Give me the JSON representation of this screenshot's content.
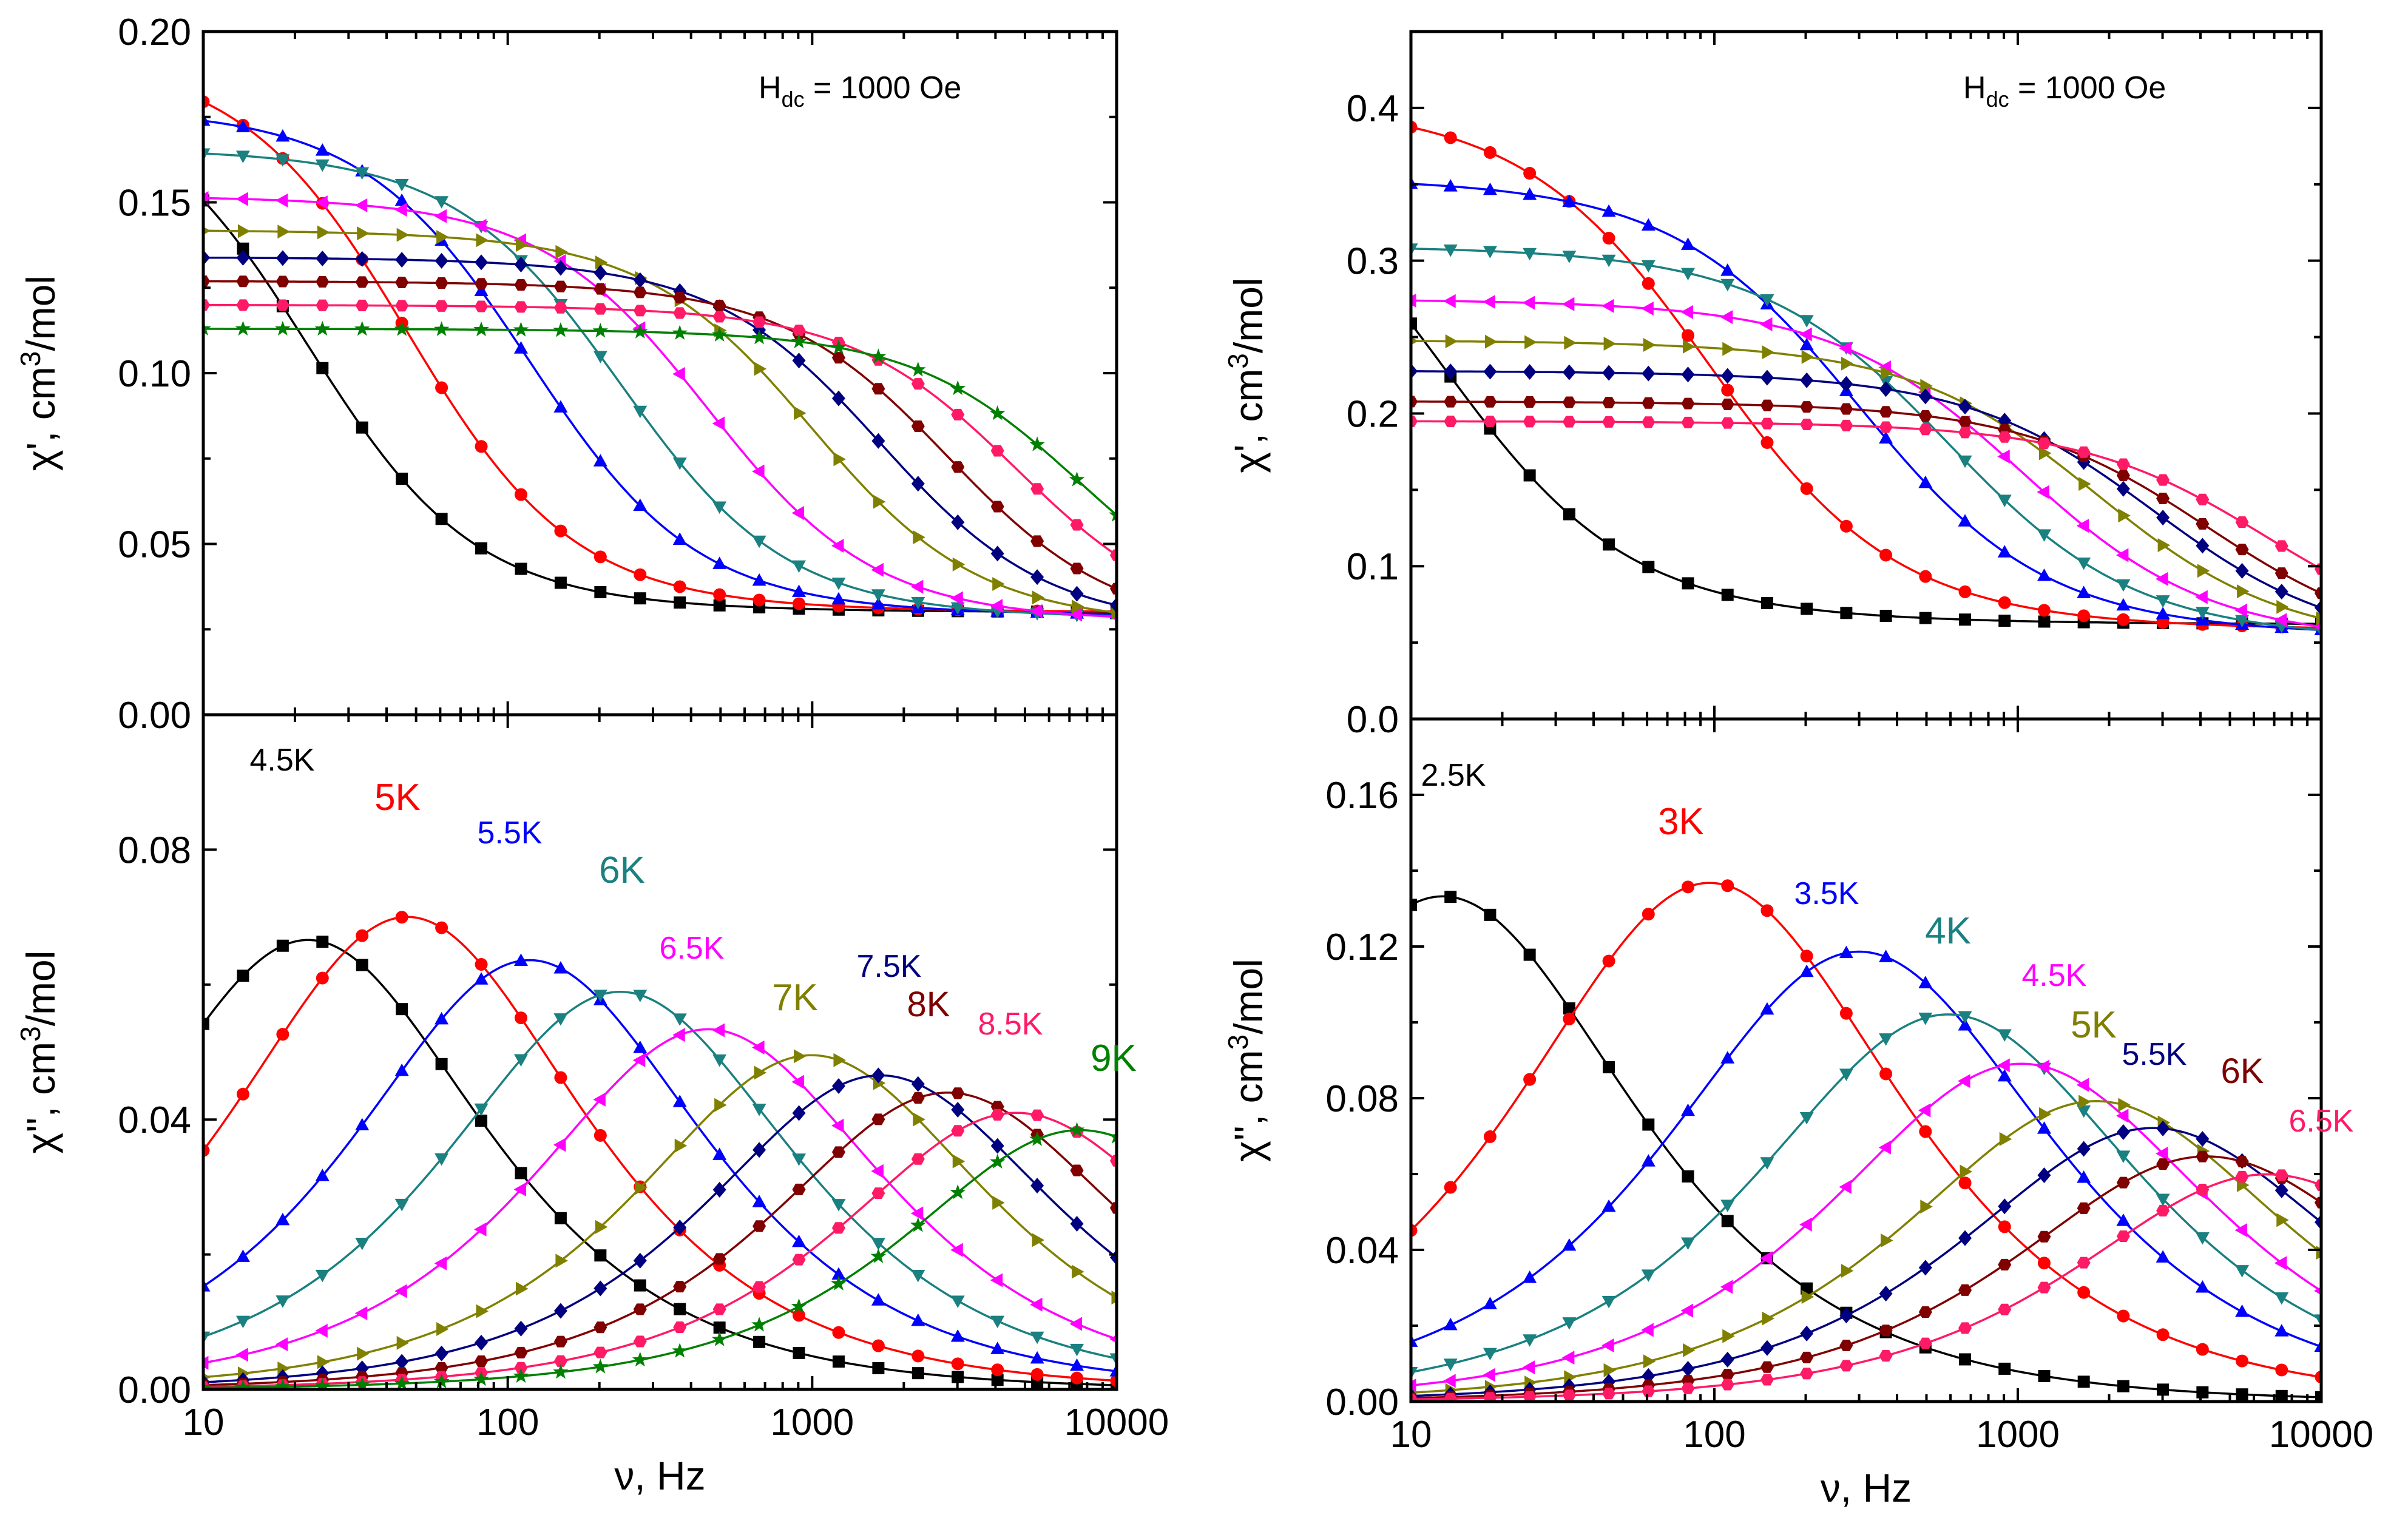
{
  "chart_data": [
    {
      "type": "scatter",
      "panel": "left-top",
      "title": "",
      "annotation": "Hdc = 1000 Oe",
      "xlabel": "ν, Hz",
      "ylabel": "χ', cm3/mol",
      "xscale": "log",
      "xlim": [
        10,
        10000
      ],
      "ylim": [
        0,
        0.2
      ],
      "yticks": [
        "0.00",
        "0.05",
        "0.10",
        "0.15",
        "0.20"
      ],
      "xticks": [
        "10",
        "100",
        "1000",
        "10000"
      ],
      "series": [
        {
          "name": "4.5K",
          "color": "#000000",
          "marker": "square",
          "chi_s": 0.03,
          "chi_t": 0.186,
          "tau": 0.0072,
          "alpha": 0.1
        },
        {
          "name": "5K",
          "color": "#ff0000",
          "marker": "circle",
          "chi_s": 0.03,
          "chi_t": 0.194,
          "tau": 0.0034,
          "alpha": 0.1
        },
        {
          "name": "5.5K",
          "color": "#0000ff",
          "marker": "triangle-up",
          "chi_s": 0.029,
          "chi_t": 0.178,
          "tau": 0.00135,
          "alpha": 0.1
        },
        {
          "name": "6K",
          "color": "#1a8080",
          "marker": "triangle-down",
          "chi_s": 0.028,
          "chi_t": 0.166,
          "tau": 0.00068,
          "alpha": 0.1
        },
        {
          "name": "6.5K",
          "color": "#ff00ff",
          "marker": "triangle-left",
          "chi_s": 0.027,
          "chi_t": 0.152,
          "tau": 0.00035,
          "alpha": 0.1
        },
        {
          "name": "7K",
          "color": "#808000",
          "marker": "triangle-right",
          "chi_s": 0.026,
          "chi_t": 0.142,
          "tau": 0.00016,
          "alpha": 0.1
        },
        {
          "name": "7.5K",
          "color": "#000080",
          "marker": "diamond",
          "chi_s": 0.025,
          "chi_t": 0.134,
          "tau": 9.5e-05,
          "alpha": 0.1
        },
        {
          "name": "8K",
          "color": "#800000",
          "marker": "hexagon",
          "chi_s": 0.024,
          "chi_t": 0.127,
          "tau": 5.7e-05,
          "alpha": 0.1
        },
        {
          "name": "8.5K",
          "color": "#ff1a66",
          "marker": "hexagon",
          "chi_s": 0.024,
          "chi_t": 0.12,
          "tau": 3.4e-05,
          "alpha": 0.1
        },
        {
          "name": "9K",
          "color": "#008000",
          "marker": "star",
          "chi_s": 0.023,
          "chi_t": 0.113,
          "tau": 2.1e-05,
          "alpha": 0.1
        }
      ]
    },
    {
      "type": "scatter",
      "panel": "left-bottom",
      "title": "",
      "xlabel": "ν, Hz",
      "ylabel": "χ'', cm3/mol",
      "xscale": "log",
      "xlim": [
        10,
        10000
      ],
      "ylim": [
        0,
        0.1
      ],
      "yticks": [
        "0.00",
        "0.04",
        "0.08"
      ],
      "xticks": [
        "10",
        "100",
        "1000",
        "10000"
      ],
      "series_ref": "left-top",
      "labels": [
        "4.5K",
        "5K",
        "5.5K",
        "6K",
        "6.5K",
        "7K",
        "7.5K",
        "8K",
        "8.5K",
        "9K"
      ]
    },
    {
      "type": "scatter",
      "panel": "right-top",
      "title": "",
      "annotation": "Hdc = 1000 Oe",
      "xlabel": "ν, Hz",
      "ylabel": "χ', cm3/mol",
      "xscale": "log",
      "xlim": [
        10,
        10000
      ],
      "ylim": [
        0,
        0.45
      ],
      "yticks": [
        "0.0",
        "0.1",
        "0.2",
        "0.3",
        "0.4"
      ],
      "xticks": [
        "10",
        "100",
        "1000",
        "10000"
      ],
      "series": [
        {
          "name": "2.5K",
          "color": "#000000",
          "marker": "square",
          "chi_s": 0.062,
          "chi_t": 0.4,
          "tau": 0.0125,
          "alpha": 0.15
        },
        {
          "name": "3K",
          "color": "#ff0000",
          "marker": "circle",
          "chi_s": 0.058,
          "chi_t": 0.405,
          "tau": 0.00165,
          "alpha": 0.15
        },
        {
          "name": "3.5K",
          "color": "#0000ff",
          "marker": "triangle-up",
          "chi_s": 0.054,
          "chi_t": 0.355,
          "tau": 0.00053,
          "alpha": 0.15
        },
        {
          "name": "4K",
          "color": "#1a8080",
          "marker": "triangle-down",
          "chi_s": 0.051,
          "chi_t": 0.31,
          "tau": 0.00027,
          "alpha": 0.15
        },
        {
          "name": "4.5K",
          "color": "#ff00ff",
          "marker": "triangle-left",
          "chi_s": 0.049,
          "chi_t": 0.275,
          "tau": 0.000155,
          "alpha": 0.15
        },
        {
          "name": "5K",
          "color": "#808000",
          "marker": "triangle-right",
          "chi_s": 0.047,
          "chi_t": 0.248,
          "tau": 8.8e-05,
          "alpha": 0.15
        },
        {
          "name": "5.5K",
          "color": "#000080",
          "marker": "diamond",
          "chi_s": 0.045,
          "chi_t": 0.228,
          "tau": 5.7e-05,
          "alpha": 0.15
        },
        {
          "name": "6K",
          "color": "#800000",
          "marker": "hexagon",
          "chi_s": 0.044,
          "chi_t": 0.208,
          "tau": 3.8e-05,
          "alpha": 0.15
        },
        {
          "name": "6.5K",
          "color": "#ff1a66",
          "marker": "hexagon",
          "chi_s": 0.043,
          "chi_t": 0.195,
          "tau": 2.4e-05,
          "alpha": 0.15
        }
      ]
    },
    {
      "type": "scatter",
      "panel": "right-bottom",
      "title": "",
      "xlabel": "ν, Hz",
      "ylabel": "χ'', cm3/mol",
      "xscale": "log",
      "xlim": [
        10,
        10000
      ],
      "ylim": [
        0,
        0.18
      ],
      "yticks": [
        "0.00",
        "0.04",
        "0.08",
        "0.12",
        "0.16"
      ],
      "xticks": [
        "10",
        "100",
        "1000",
        "10000"
      ],
      "series_ref": "right-top",
      "labels": [
        "2.5K",
        "3K",
        "3.5K",
        "4K",
        "4.5K",
        "5K",
        "5.5K",
        "6K",
        "6.5K"
      ]
    }
  ]
}
